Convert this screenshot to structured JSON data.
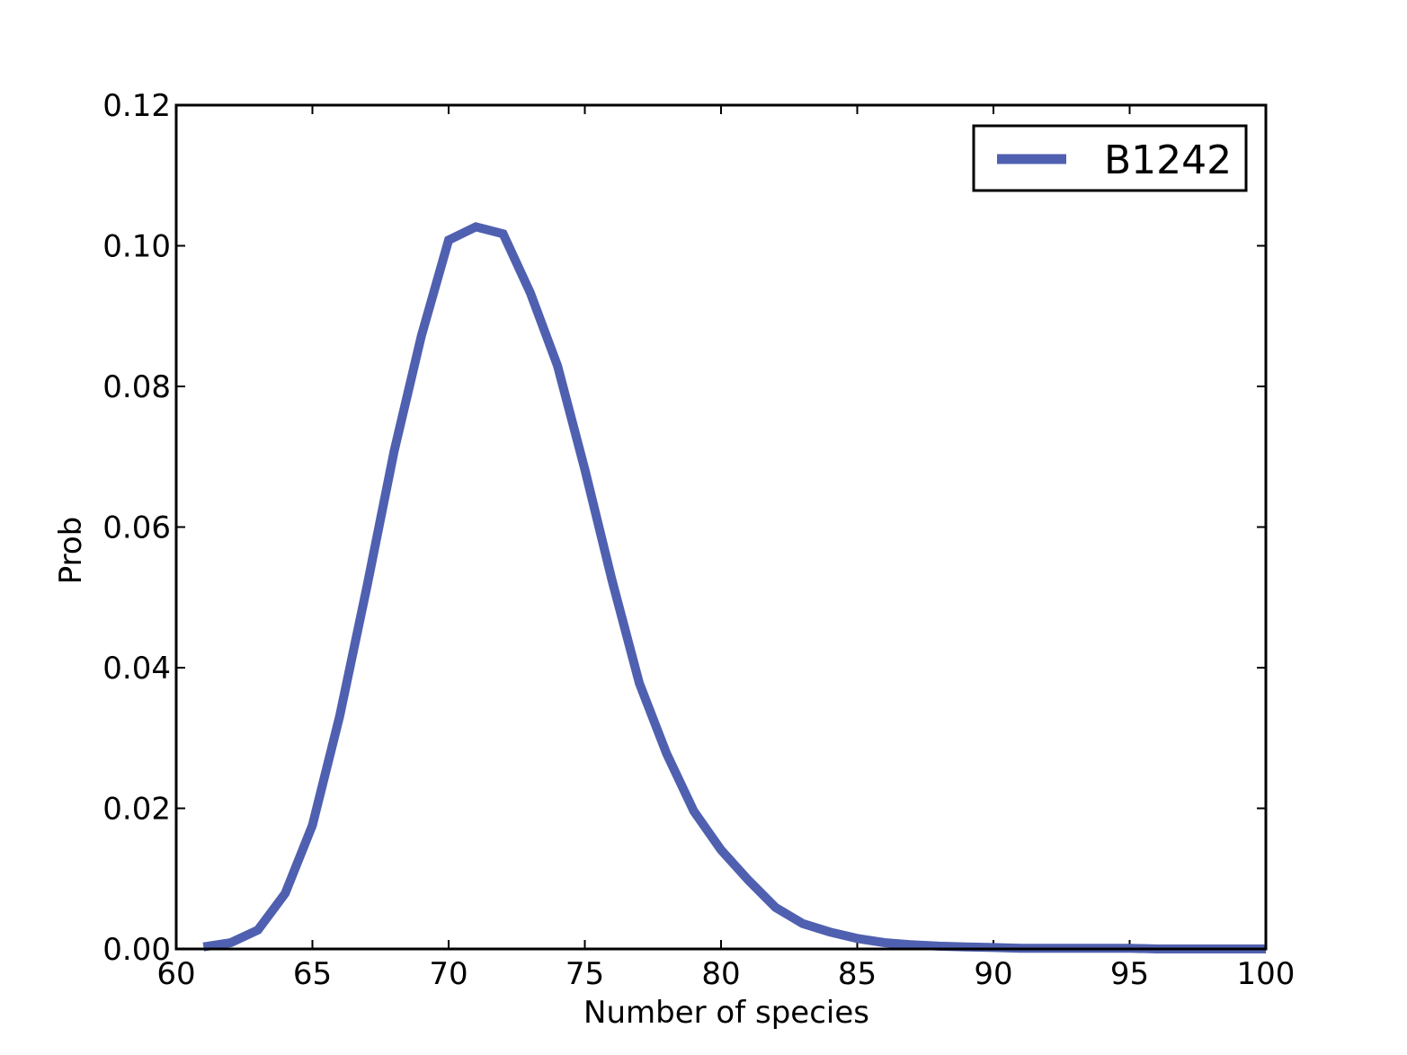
{
  "chart_data": {
    "type": "line",
    "title": "",
    "xlabel": "Number of species",
    "ylabel": "Prob",
    "xlim": [
      60,
      100
    ],
    "ylim": [
      0.0,
      0.12
    ],
    "x_ticks": [
      "60",
      "65",
      "70",
      "75",
      "80",
      "85",
      "90",
      "95",
      "100"
    ],
    "y_ticks": [
      "0.00",
      "0.02",
      "0.04",
      "0.06",
      "0.08",
      "0.10",
      "0.12"
    ],
    "grid": false,
    "legend": {
      "position": "top-right"
    },
    "series": [
      {
        "name": "B1242",
        "color": "#5060b0",
        "x": [
          61,
          62,
          63,
          64,
          65,
          66,
          67,
          68,
          69,
          70,
          71,
          72,
          73,
          74,
          75,
          76,
          77,
          78,
          79,
          80,
          81,
          82,
          83,
          84,
          85,
          86,
          87,
          88,
          89,
          90,
          91,
          92,
          93,
          94,
          95,
          96,
          97,
          98,
          99,
          100
        ],
        "y": [
          0.0003,
          0.0009,
          0.0027,
          0.0079,
          0.0176,
          0.0331,
          0.0515,
          0.0708,
          0.0872,
          0.1008,
          0.1027,
          0.1017,
          0.0933,
          0.0829,
          0.0682,
          0.0524,
          0.0378,
          0.0278,
          0.0196,
          0.0141,
          0.0098,
          0.0059,
          0.0036,
          0.0024,
          0.0015,
          0.0009,
          0.0006,
          0.0004,
          0.0003,
          0.0002,
          0.0001,
          0.0001,
          0.0001,
          0.0001,
          0.0001,
          0.0,
          0.0,
          0.0,
          0.0,
          0.0
        ]
      }
    ]
  }
}
